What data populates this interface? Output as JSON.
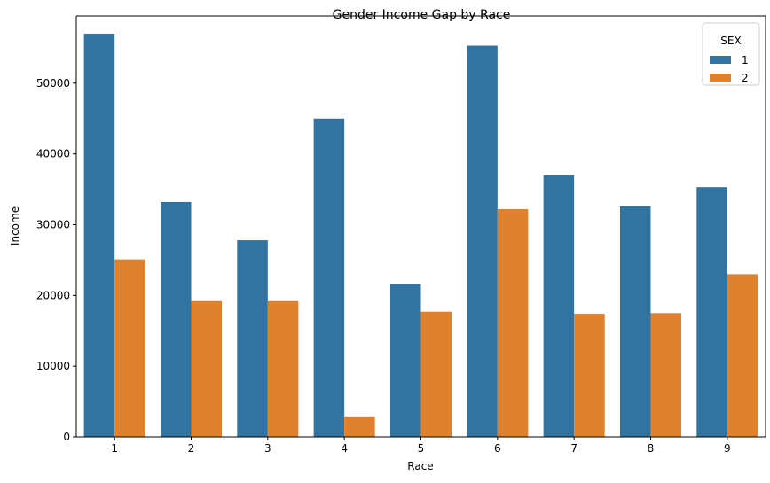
{
  "chart_data": {
    "type": "bar",
    "title": "Gender Income Gap by Race",
    "xlabel": "Race",
    "ylabel": "Income",
    "categories": [
      "1",
      "2",
      "3",
      "4",
      "5",
      "6",
      "7",
      "8",
      "9"
    ],
    "series": [
      {
        "name": "1",
        "color": "#3274a1",
        "values": [
          57000,
          33200,
          27800,
          45000,
          21600,
          55300,
          37000,
          32600,
          35300
        ]
      },
      {
        "name": "2",
        "color": "#e1812c",
        "values": [
          25100,
          19200,
          19200,
          2900,
          17700,
          32200,
          17400,
          17500,
          23000
        ]
      }
    ],
    "ylim": [
      0,
      59500
    ],
    "yticks": [
      0,
      10000,
      20000,
      30000,
      40000,
      50000
    ],
    "legend": {
      "title": "SEX",
      "position": "top-right"
    },
    "grid": false
  }
}
